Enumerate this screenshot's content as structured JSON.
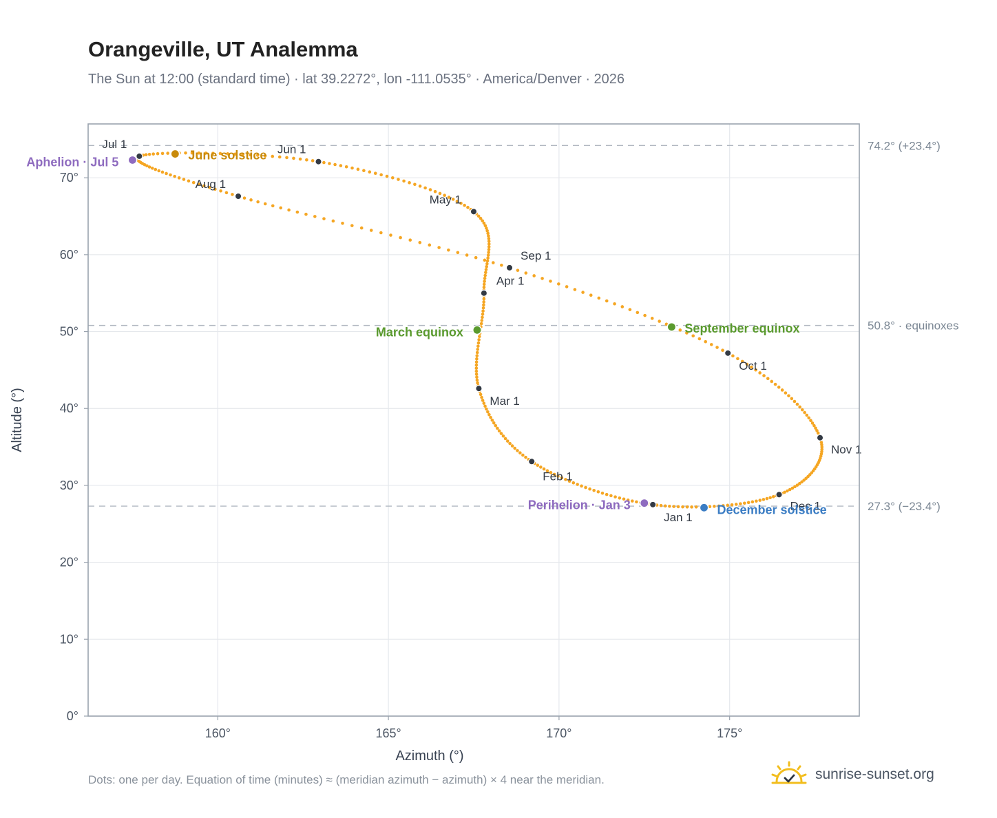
{
  "title": "Orangeville, UT Analemma",
  "subtitle": "The Sun at 12:00 (standard time) · lat 39.2272°, lon -111.0535° · America/Denver · 2026",
  "footnote": "Dots: one per day. Equation of time (minutes) ≈ (meridian azimuth − azimuth) × 4 near the meridian.",
  "brand": {
    "name": "sunrise-sunset.org",
    "icon": "sun-logo-icon"
  },
  "colors": {
    "curve": "#f5a623",
    "month_dot": "#333a44",
    "aphelion": "#8e6bbf",
    "perihelion": "#8e6bbf",
    "june_solstice": "#c88a0a",
    "december_solstice": "#3b7dc4",
    "equinox": "#5a9a2e",
    "grid": "#e5e8ec",
    "frame": "#9aa3ae",
    "reference": "#b0b7c0"
  },
  "chart_data": {
    "type": "scatter",
    "xlabel": "Azimuth (°)",
    "ylabel": "Altitude (°)",
    "xlim": [
      156.2,
      178.8
    ],
    "ylim": [
      0,
      77
    ],
    "x_ticks": [
      160,
      165,
      170,
      175
    ],
    "x_tick_labels": [
      "160°",
      "165°",
      "170°",
      "175°"
    ],
    "y_ticks": [
      0,
      10,
      20,
      30,
      40,
      50,
      60,
      70
    ],
    "y_tick_labels": [
      "0°",
      "10°",
      "20°",
      "30°",
      "40°",
      "50°",
      "60°",
      "70°"
    ],
    "grid": true,
    "reference_lines": [
      {
        "y": 74.2,
        "label": "74.2° (+23.4°)"
      },
      {
        "y": 50.8,
        "label": "50.8° · equinoxes"
      },
      {
        "y": 27.3,
        "label": "27.3° (−23.4°)"
      }
    ],
    "months": [
      {
        "label": "Jan 1",
        "x": 172.75,
        "y": 27.5
      },
      {
        "label": "Feb 1",
        "x": 169.2,
        "y": 33.1
      },
      {
        "label": "Mar 1",
        "x": 167.65,
        "y": 42.6
      },
      {
        "label": "Apr 1",
        "x": 167.8,
        "y": 55.0
      },
      {
        "label": "May 1",
        "x": 167.5,
        "y": 65.6
      },
      {
        "label": "Jun 1",
        "x": 162.95,
        "y": 72.1
      },
      {
        "label": "Jul 1",
        "x": 157.7,
        "y": 72.8
      },
      {
        "label": "Aug 1",
        "x": 160.6,
        "y": 67.6
      },
      {
        "label": "Sep 1",
        "x": 168.55,
        "y": 58.3
      },
      {
        "label": "Oct 1",
        "x": 174.95,
        "y": 47.2
      },
      {
        "label": "Nov 1",
        "x": 177.65,
        "y": 36.2
      },
      {
        "label": "Dec 1",
        "x": 176.45,
        "y": 28.8
      }
    ],
    "events": [
      {
        "label": "Aphelion · Jul 5",
        "x": 157.5,
        "y": 72.3,
        "color_key": "aphelion"
      },
      {
        "label": "June solstice",
        "x": 158.75,
        "y": 73.1,
        "color_key": "june_solstice"
      },
      {
        "label": "March equinox",
        "x": 167.6,
        "y": 50.2,
        "color_key": "equinox"
      },
      {
        "label": "September equinox",
        "x": 173.3,
        "y": 50.6,
        "color_key": "equinox"
      },
      {
        "label": "Perihelion · Jan 3",
        "x": 172.5,
        "y": 27.7,
        "color_key": "perihelion"
      },
      {
        "label": "December solstice",
        "x": 174.25,
        "y": 27.1,
        "color_key": "december_solstice"
      }
    ]
  }
}
